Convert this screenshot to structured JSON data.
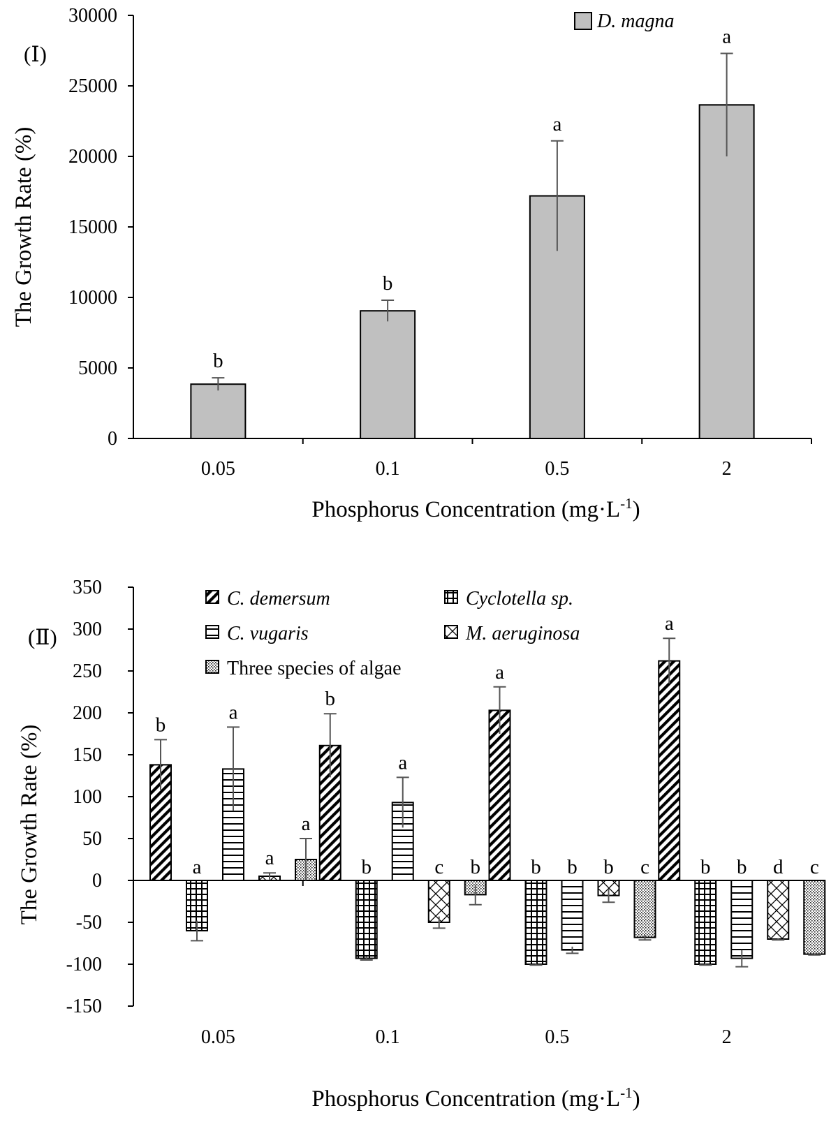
{
  "chart_data": [
    {
      "type": "bar",
      "panel_label": "(Ⅰ)",
      "categories": [
        "0.05",
        "0.1",
        "0.5",
        "2"
      ],
      "series": [
        {
          "name": "D. magna",
          "fill": "#c0c0c0",
          "values": [
            3850,
            9050,
            17200,
            23650
          ],
          "errors": [
            450,
            750,
            3900,
            3650
          ],
          "letters": [
            "b",
            "b",
            "a",
            "a"
          ]
        }
      ],
      "xlabel": "Phosphorus Concentration (mg·L-1)",
      "xlabel_main": "Phosphorus Concentration (mg·L",
      "xlabel_sup": "-1",
      "xlabel_close": ")",
      "ylabel": "The Growth Rate (%)",
      "ylim": [
        0,
        30000
      ],
      "yticks": [
        0,
        5000,
        10000,
        15000,
        20000,
        25000,
        30000
      ],
      "legend_position": "top-right",
      "grid": false
    },
    {
      "type": "bar",
      "panel_label": "(Ⅱ)",
      "categories": [
        "0.05",
        "0.1",
        "0.5",
        "2"
      ],
      "series": [
        {
          "name": "C. demersum",
          "italic": true,
          "pattern": "diagonal",
          "values": [
            138,
            161,
            203,
            262
          ],
          "errors": [
            30,
            38,
            28,
            27
          ],
          "letters": [
            "b",
            "b",
            "a",
            "a"
          ]
        },
        {
          "name": "Cyclotella sp.",
          "italic": true,
          "pattern": "grid",
          "values": [
            -60,
            -93,
            -100,
            -100
          ],
          "errors": [
            12,
            2,
            1,
            1
          ],
          "letters": [
            "a",
            "b",
            "b",
            "b"
          ]
        },
        {
          "name": "C. vugaris",
          "italic": true,
          "pattern": "horizontal",
          "values": [
            133,
            93,
            -83,
            -93
          ],
          "errors": [
            50,
            30,
            4,
            10
          ],
          "letters": [
            "a",
            "a",
            "b",
            "b"
          ]
        },
        {
          "name": "M. aeruginosa",
          "italic": true,
          "pattern": "crosshatch",
          "values": [
            5,
            -50,
            -18,
            -70
          ],
          "errors": [
            4,
            7,
            8,
            1
          ],
          "letters": [
            "a",
            "c",
            "b",
            "d"
          ]
        },
        {
          "name": "Three species of algae",
          "italic": false,
          "pattern": "dots",
          "values": [
            25,
            -17,
            -68,
            -88
          ],
          "errors": [
            25,
            12,
            3,
            1
          ],
          "letters": [
            "a",
            "b",
            "c",
            "c"
          ]
        }
      ],
      "xlabel": "Phosphorus Concentration (mg·L-1)",
      "xlabel_main": "Phosphorus Concentration (mg·L",
      "xlabel_sup": "-1",
      "xlabel_close": ")",
      "ylabel": "The Growth Rate (%)",
      "ylim": [
        -150,
        350
      ],
      "yticks": [
        -150,
        -100,
        -50,
        0,
        50,
        100,
        150,
        200,
        250,
        300,
        350
      ],
      "legend_position": "top",
      "grid": false
    }
  ]
}
